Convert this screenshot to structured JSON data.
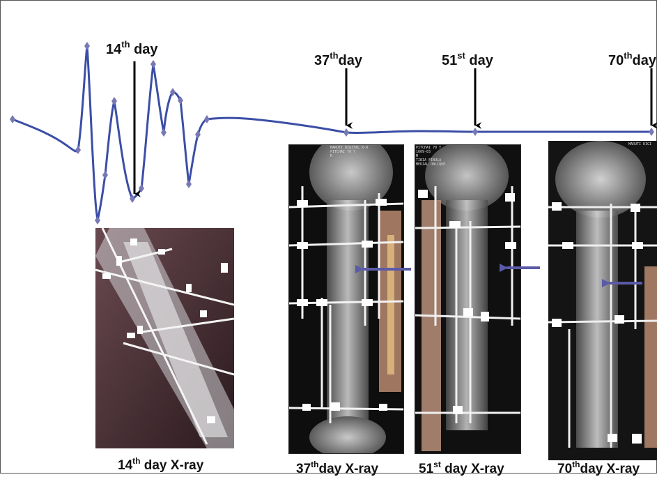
{
  "timeline": {
    "markers": [
      {
        "num": "14",
        "sup": "th",
        "word": "day"
      },
      {
        "num": "37",
        "sup": "th",
        "word": "day"
      },
      {
        "num": "51",
        "sup": "st",
        "word": "day"
      },
      {
        "num": "70",
        "sup": "th",
        "word": "day"
      }
    ],
    "line_color": "#3b4ea6",
    "point_color": "#7878b4"
  },
  "xrays": [
    {
      "caption_num": "14",
      "caption_sup": "th",
      "caption_rest": "day X-ray",
      "header": ""
    },
    {
      "caption_num": "37",
      "caption_sup": "th",
      "caption_rest": "day X-ray",
      "header": "MARUTI DIGITAL X-R\nPITCHAI 70 Y\nR"
    },
    {
      "caption_num": "51",
      "caption_sup": "st",
      "caption_rest": "day X-ray",
      "header": "PITCHAI 70 Y\n1609-03\nM\nTIBIA FIBULA\nMEDIAL OBLIQUE"
    },
    {
      "caption_num": "70",
      "caption_sup": "th",
      "caption_rest": "day X-ray",
      "header": "MARUTI DIGI"
    }
  ],
  "arrow_color": "#5a5aa8"
}
